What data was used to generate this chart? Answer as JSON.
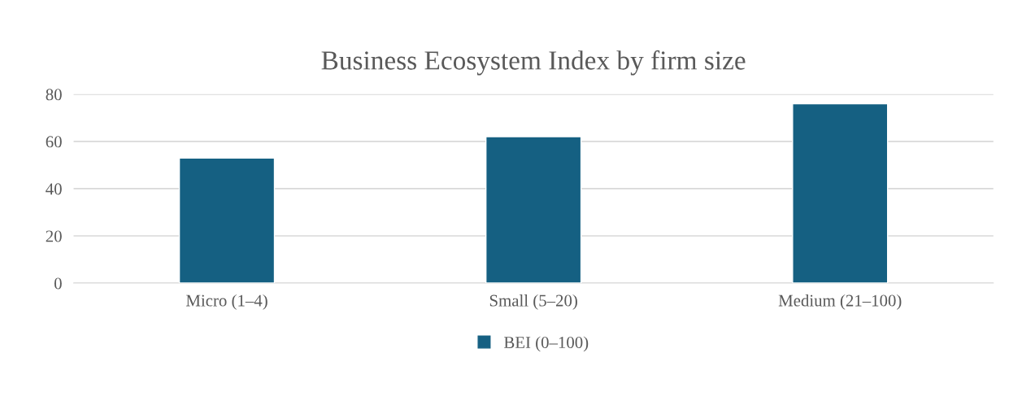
{
  "chart_data": {
    "type": "bar",
    "title": "Business Ecosystem Index by firm size",
    "categories": [
      "Micro (1–4)",
      "Small (5–20)",
      "Medium (21–100)"
    ],
    "series": [
      {
        "name": "BEI (0–100)",
        "color": "#156082",
        "values": [
          53,
          62,
          76
        ]
      }
    ],
    "ylim": [
      0,
      80
    ],
    "yticks": [
      0,
      20,
      40,
      60,
      80
    ],
    "grid": "y",
    "legend": "bottom"
  }
}
